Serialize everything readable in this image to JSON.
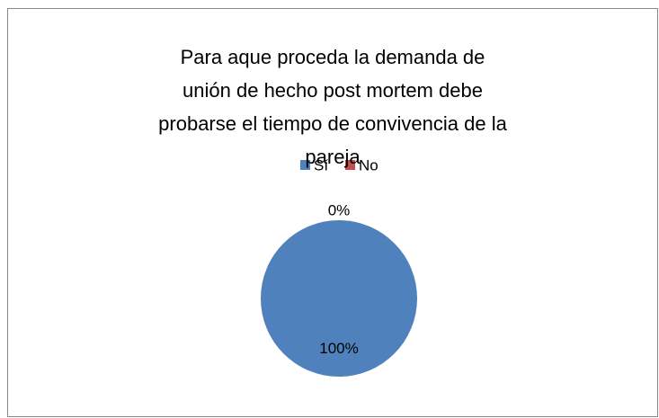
{
  "chart_data": {
    "type": "pie",
    "title": "Para aque proceda la demanda de unión de hecho post mortem debe probarse el tiempo de convivencia de la pareja",
    "categories": [
      "Sí",
      "No"
    ],
    "values": [
      100,
      0
    ],
    "value_labels": [
      "100%",
      "0%"
    ],
    "colors": [
      "#4f81bd",
      "#c0504d"
    ],
    "legend": "top"
  }
}
